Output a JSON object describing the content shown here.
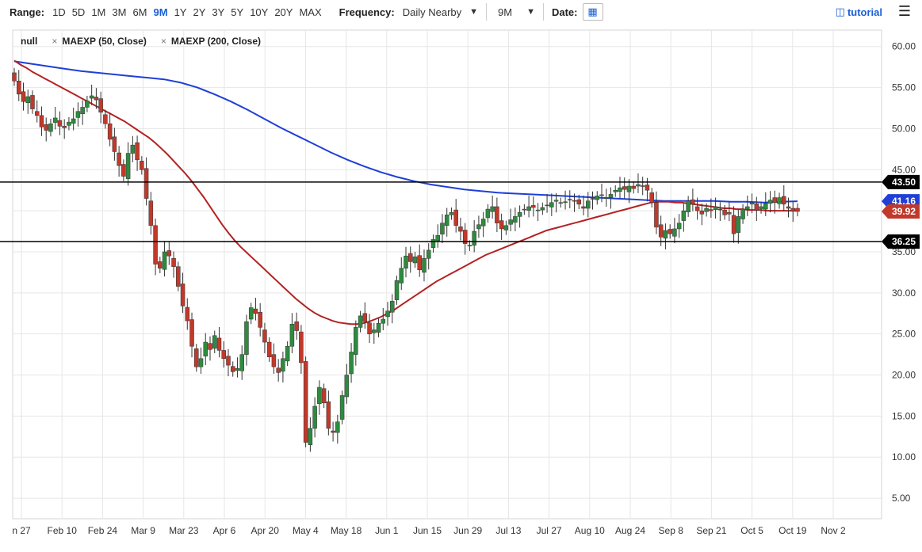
{
  "toolbar": {
    "range_label": "Range:",
    "ranges": [
      "1D",
      "5D",
      "1M",
      "3M",
      "6M",
      "9M",
      "1Y",
      "2Y",
      "3Y",
      "5Y",
      "10Y",
      "20Y",
      "MAX"
    ],
    "active_range": "9M",
    "frequency_label": "Frequency:",
    "frequency_value": "Daily Nearby",
    "period_value": "9M",
    "date_label": "Date:",
    "tutorial_label": "tutorial"
  },
  "legend": {
    "items": [
      "null",
      "MAEXP (50, Close)",
      "MAEXP (200, Close)"
    ]
  },
  "colors": {
    "up": "#2e8b3e",
    "down": "#c0392b",
    "ma50": "#b22222",
    "ma200": "#1f3fd6",
    "hline": "#000000"
  },
  "chart_data": {
    "type": "candlestick",
    "x_ticks": [
      "n 27",
      "Feb 10",
      "Feb 24",
      "Mar 9",
      "Mar 23",
      "Apr 6",
      "Apr 20",
      "May 4",
      "May 18",
      "Jun 1",
      "Jun 15",
      "Jun 29",
      "Jul 13",
      "Jul 27",
      "Aug 10",
      "Aug 24",
      "Sep 8",
      "Sep 21",
      "Oct 5",
      "Oct 19",
      "Nov 2"
    ],
    "y_ticks": [
      "60.00",
      "55.00",
      "50.00",
      "45.00",
      "40.00",
      "35.00",
      "30.00",
      "25.00",
      "20.00",
      "15.00",
      "10.00",
      "5.00"
    ],
    "ylim": [
      2.5,
      62
    ],
    "horizontal_lines": [
      {
        "value": 43.5,
        "label": "43.50"
      },
      {
        "value": 36.25,
        "label": "36.25"
      }
    ],
    "last_price_labels": [
      {
        "value": 41.16,
        "label": "41.16",
        "series": "MAEXP (200, Close)"
      },
      {
        "value": 39.92,
        "label": "39.92",
        "series": "last close"
      }
    ],
    "close": [
      55.8,
      54.2,
      53.3,
      53.9,
      52.4,
      51.6,
      50.2,
      49.8,
      50.6,
      51.3,
      50.3,
      50.1,
      50.8,
      51.2,
      52.1,
      52.6,
      53.4,
      54.0,
      53.5,
      52.0,
      50.6,
      48.7,
      47.2,
      45.5,
      44.2,
      47.0,
      48.0,
      46.2,
      45.0,
      41.5,
      38.2,
      33.5,
      33.0,
      35.0,
      34.5,
      33.2,
      30.8,
      28.4,
      26.6,
      23.5,
      21.0,
      22.0,
      24.0,
      23.1,
      24.8,
      23.0,
      22.0,
      21.2,
      20.4,
      20.8,
      22.5,
      26.5,
      28.2,
      27.5,
      25.8,
      24.0,
      22.2,
      21.0,
      20.3,
      22.0,
      23.5,
      26.2,
      25.4,
      21.5,
      11.8,
      13.5,
      16.2,
      18.5,
      16.6,
      13.5,
      13.0,
      14.3,
      17.5,
      20.0,
      22.8,
      25.8,
      27.2,
      26.5,
      25.0,
      25.5,
      26.3,
      26.8,
      27.8,
      29.0,
      31.5,
      33.0,
      34.5,
      33.8,
      34.4,
      32.8,
      34.2,
      35.2,
      36.5,
      37.0,
      38.5,
      39.5,
      39.8,
      38.2,
      37.5,
      36.0,
      35.8,
      37.5,
      38.3,
      39.0,
      40.2,
      40.5,
      38.5,
      37.8,
      38.2,
      38.9,
      39.3,
      39.8,
      40.2,
      40.5,
      40.4,
      40.1,
      40.4,
      40.6,
      41.0,
      41.3,
      41.0,
      41.1,
      41.4,
      41.2,
      40.8,
      40.3,
      41.2,
      41.5,
      41.8,
      41.9,
      41.6,
      42.0,
      42.5,
      42.8,
      42.6,
      43.0,
      42.7,
      43.2,
      43.0,
      42.5,
      41.0,
      38.0,
      36.8,
      37.6,
      37.2,
      37.8,
      38.5,
      40.0,
      41.2,
      40.8,
      40.0,
      39.6,
      40.3,
      40.0,
      40.5,
      40.1,
      39.5,
      39.6,
      37.2,
      39.3,
      40.2,
      40.5,
      41.0,
      40.1,
      40.5,
      40.9,
      41.3,
      41.0,
      41.6,
      40.8,
      40.3,
      40.0,
      39.92
    ],
    "ma50": [
      58.3,
      57.8,
      57.4,
      56.9,
      56.5,
      56.1,
      55.7,
      55.3,
      54.9,
      54.5,
      54.1,
      53.7,
      53.3,
      52.9,
      52.5,
      52.1,
      51.7,
      51.3,
      50.9,
      50.4,
      49.9,
      49.4,
      48.9,
      48.3,
      47.6,
      46.9,
      46.1,
      45.3,
      44.5,
      43.6,
      42.6,
      41.6,
      40.5,
      39.4,
      38.3,
      37.3,
      36.4,
      35.6,
      34.9,
      34.2,
      33.5,
      32.8,
      32.1,
      31.4,
      30.7,
      30.0,
      29.3,
      28.7,
      28.1,
      27.6,
      27.2,
      26.9,
      26.6,
      26.4,
      26.3,
      26.2,
      26.2,
      26.3,
      26.5,
      26.8,
      27.1,
      27.5,
      27.9,
      28.4,
      28.9,
      29.4,
      29.9,
      30.4,
      30.9,
      31.4,
      31.8,
      32.2,
      32.6,
      33.0,
      33.4,
      33.8,
      34.2,
      34.6,
      34.9,
      35.2,
      35.5,
      35.8,
      36.1,
      36.4,
      36.7,
      37.0,
      37.3,
      37.6,
      37.8,
      38.0,
      38.2,
      38.4,
      38.6,
      38.8,
      39.0,
      39.2,
      39.4,
      39.6,
      39.8,
      40.0,
      40.2,
      40.4,
      40.6,
      40.8,
      41.0,
      41.1,
      41.1,
      41.1,
      41.0,
      41.0,
      40.9,
      40.8,
      40.7,
      40.6,
      40.5,
      40.4,
      40.3,
      40.3,
      40.2,
      40.2,
      40.1,
      40.1,
      40.1,
      40.0,
      40.0,
      40.0,
      40.0,
      40.0,
      40.0
    ],
    "ma200": [
      58.2,
      57.9,
      57.6,
      57.3,
      57.0,
      56.8,
      56.6,
      56.4,
      56.2,
      56.0,
      55.6,
      55.0,
      54.2,
      53.3,
      52.3,
      51.2,
      50.1,
      49.1,
      48.1,
      47.1,
      46.2,
      45.4,
      44.7,
      44.1,
      43.6,
      43.2,
      42.9,
      42.6,
      42.4,
      42.2,
      42.1,
      42.0,
      41.9,
      41.8,
      41.7,
      41.6,
      41.5,
      41.4,
      41.3,
      41.2,
      41.2,
      41.2,
      41.2,
      41.1,
      41.1,
      41.0,
      41.1,
      41.16
    ]
  }
}
